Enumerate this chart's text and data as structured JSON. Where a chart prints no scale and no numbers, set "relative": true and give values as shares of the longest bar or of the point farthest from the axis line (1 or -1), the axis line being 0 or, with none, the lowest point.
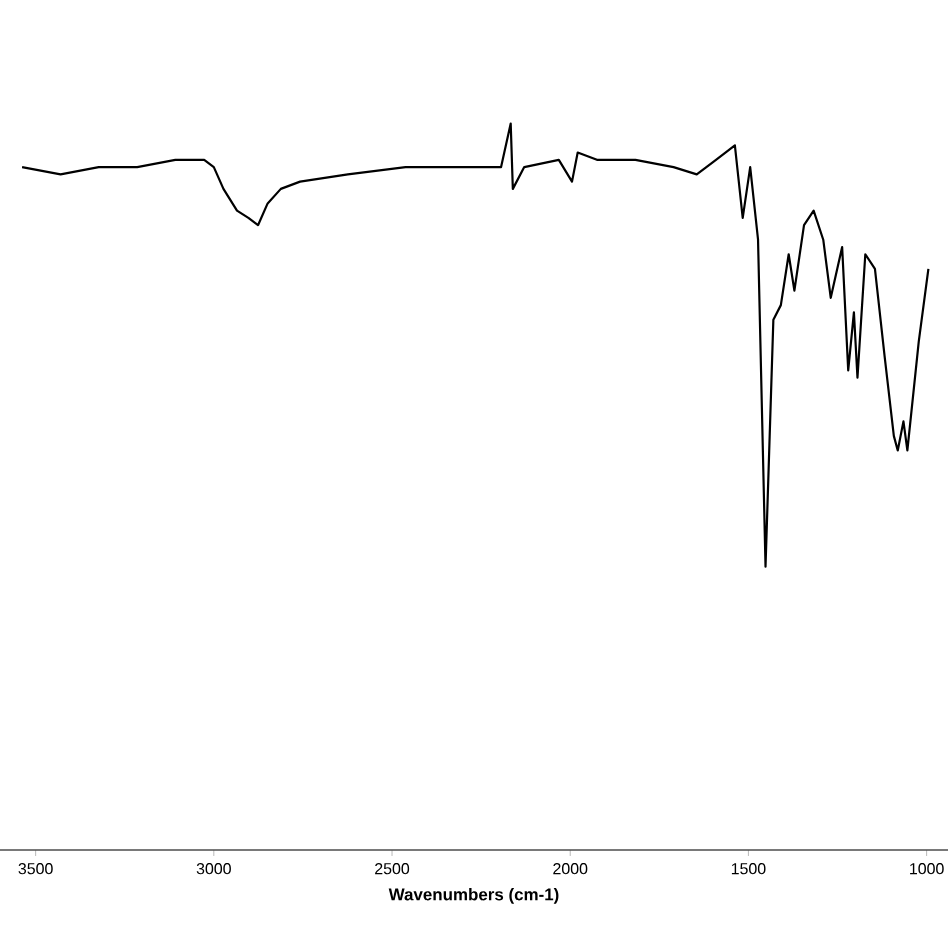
{
  "chart_data": {
    "type": "line",
    "relative": true,
    "xlabel": "Wavenumbers (cm-1)",
    "xlim": [
      3600,
      940
    ],
    "xticks": [
      3500,
      3000,
      2500,
      2000,
      1500,
      1000
    ],
    "x": [
      3538,
      3430,
      3323,
      3215,
      3108,
      3027,
      3000,
      2973,
      2935,
      2903,
      2876,
      2849,
      2812,
      2758,
      2624,
      2462,
      2301,
      2194,
      2167,
      2161,
      2129,
      2032,
      1995,
      1979,
      1925,
      1817,
      1710,
      1645,
      1618,
      1591,
      1538,
      1516,
      1495,
      1473,
      1452,
      1430,
      1409,
      1387,
      1371,
      1344,
      1317,
      1290,
      1269,
      1237,
      1220,
      1204,
      1194,
      1172,
      1145,
      1118,
      1092,
      1081,
      1065,
      1054,
      1022,
      995
    ],
    "series": [
      {
        "color": "#000000",
        "values": [
          0.94,
          0.93,
          0.94,
          0.94,
          0.95,
          0.95,
          0.94,
          0.91,
          0.88,
          0.87,
          0.86,
          0.89,
          0.91,
          0.92,
          0.93,
          0.94,
          0.94,
          0.94,
          1.0,
          0.91,
          0.94,
          0.95,
          0.92,
          0.96,
          0.95,
          0.95,
          0.94,
          0.93,
          0.94,
          0.95,
          0.97,
          0.87,
          0.94,
          0.84,
          0.39,
          0.73,
          0.75,
          0.82,
          0.77,
          0.86,
          0.88,
          0.84,
          0.76,
          0.83,
          0.66,
          0.74,
          0.65,
          0.82,
          0.8,
          0.68,
          0.57,
          0.55,
          0.59,
          0.55,
          0.7,
          0.8
        ]
      }
    ],
    "marker": "none",
    "line_style": "solid"
  }
}
